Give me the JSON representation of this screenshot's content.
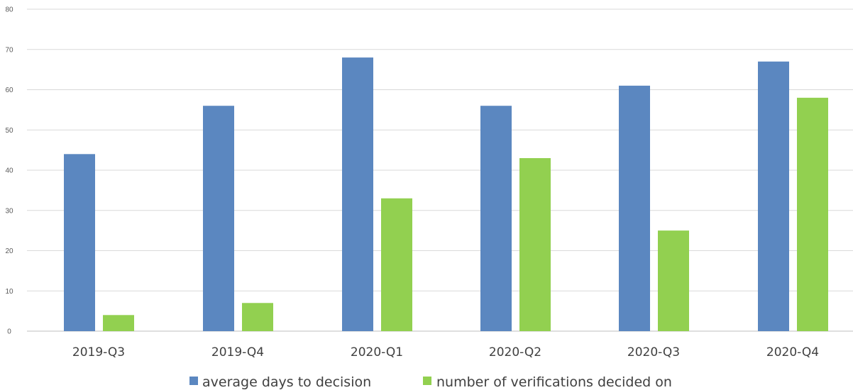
{
  "chart_data": {
    "type": "bar",
    "categories": [
      "2019-Q3",
      "2019-Q4",
      "2020-Q1",
      "2020-Q2",
      "2020-Q3",
      "2020-Q4"
    ],
    "series": [
      {
        "name": "average days to decision",
        "color": "#5b87c0",
        "values": [
          44,
          56,
          68,
          56,
          61,
          67
        ]
      },
      {
        "name": "number of verifications decided on",
        "color": "#92d050",
        "values": [
          4,
          7,
          33,
          43,
          25,
          58
        ]
      }
    ],
    "ylim": [
      0,
      80
    ],
    "yticks": [
      0,
      10,
      20,
      30,
      40,
      50,
      60,
      70,
      80
    ],
    "grid": true,
    "legend_position": "bottom"
  }
}
